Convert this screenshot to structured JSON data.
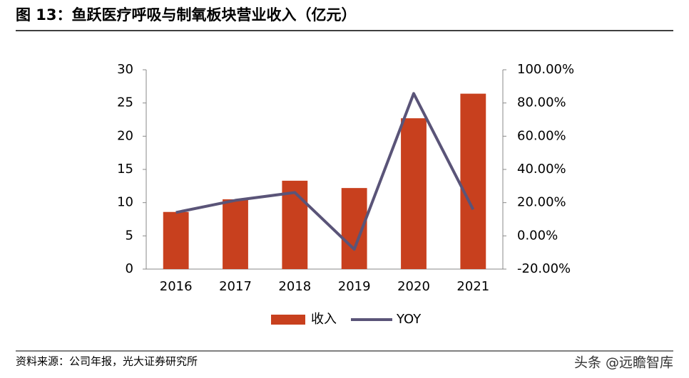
{
  "chart_data": {
    "type": "bar",
    "title": "图 13：鱼跃医疗呼吸与制氧板块营业收入（亿元）",
    "source": "资料来源：公司年报，光大证券研究所",
    "watermark": "头条 @远瞻智库",
    "categories": [
      "2016",
      "2017",
      "2018",
      "2019",
      "2020",
      "2021"
    ],
    "series": [
      {
        "name": "收入",
        "type": "bar",
        "color": "#c8401e",
        "values": [
          8.6,
          10.5,
          13.3,
          12.2,
          22.7,
          26.4
        ]
      },
      {
        "name": "YOY",
        "type": "line",
        "axis": "y2",
        "color": "#5a5478",
        "values": [
          14.1,
          21.4,
          26.1,
          -8.1,
          85.7,
          15.9
        ]
      }
    ],
    "ylim": [
      0,
      30
    ],
    "yticks": [
      0,
      5,
      10,
      15,
      20,
      25,
      30
    ],
    "y2lim": [
      -20,
      100
    ],
    "y2ticks": [
      {
        "value": -20,
        "label": "-20.00%"
      },
      {
        "value": 0,
        "label": "0.00%"
      },
      {
        "value": 20,
        "label": "20.00%"
      },
      {
        "value": 40,
        "label": "40.00%"
      },
      {
        "value": 60,
        "label": "60.00%"
      },
      {
        "value": 80,
        "label": "80.00%"
      },
      {
        "value": 100,
        "label": "100.00%"
      }
    ],
    "legend": "bottom"
  }
}
